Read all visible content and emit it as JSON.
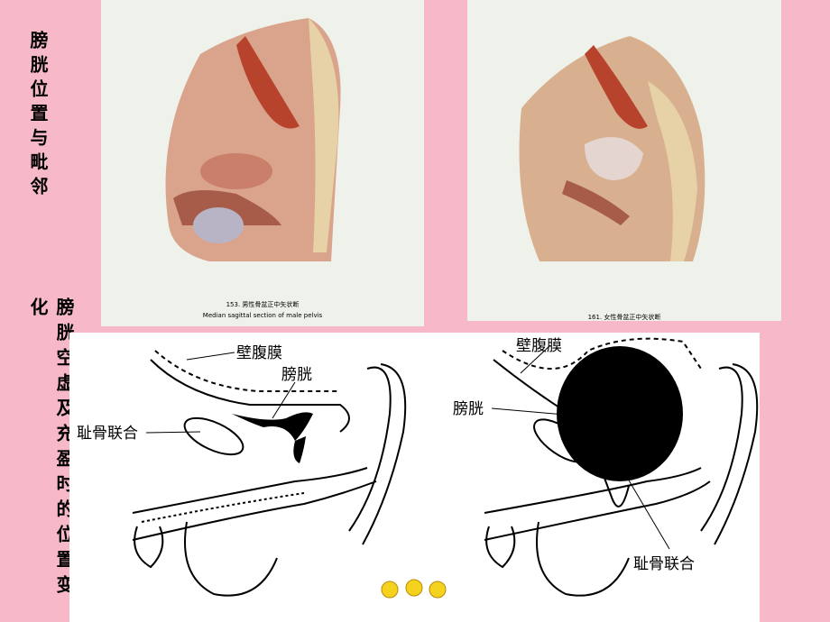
{
  "sidebar": {
    "heading_1": "膀胱位置与毗邻",
    "heading_2": "膀胱空虚及充盈时的位置变化"
  },
  "photos": {
    "male": {
      "caption_cn": "153. 男性骨盆正中矢状断",
      "caption_en": "Median sagittal section of male pelvis"
    },
    "female": {
      "caption_cn": "161. 女性骨盆正中矢状断"
    }
  },
  "diagram": {
    "empty": {
      "peritoneum": "壁腹膜",
      "bladder": "膀胱",
      "pubic_symphysis": "耻骨联合"
    },
    "full": {
      "peritoneum": "壁腹膜",
      "bladder": "膀胱",
      "pubic_symphysis": "耻骨联合"
    }
  }
}
